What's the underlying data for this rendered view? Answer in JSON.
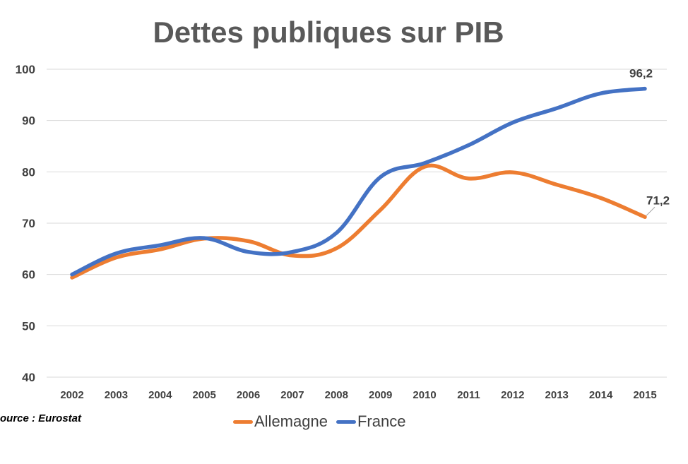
{
  "chart_data": {
    "type": "line",
    "title": "Dettes publiques sur PIB",
    "source": "ource : Eurostat",
    "x": [
      2002,
      2003,
      2004,
      2005,
      2006,
      2007,
      2008,
      2009,
      2010,
      2011,
      2012,
      2013,
      2014,
      2015
    ],
    "x_tick_labels": [
      "2002",
      "2003",
      "2004",
      "2005",
      "2006",
      "2007",
      "2008",
      "2009",
      "2010",
      "2011",
      "2012",
      "2013",
      "2014",
      "2015"
    ],
    "ylim": [
      40,
      100
    ],
    "y_ticks": [
      40,
      50,
      60,
      70,
      80,
      90,
      100
    ],
    "y_tick_labels": [
      "40",
      "50",
      "60",
      "70",
      "80",
      "90",
      "100"
    ],
    "grid": true,
    "legend_position": "bottom",
    "series": [
      {
        "name": "Allemagne",
        "color": "#ED7D31",
        "values": [
          59.4,
          63.3,
          64.9,
          67.0,
          66.5,
          63.7,
          65.1,
          72.6,
          81.0,
          78.7,
          79.9,
          77.5,
          74.9,
          71.2
        ],
        "end_label": "71,2"
      },
      {
        "name": "France",
        "color": "#4472C4",
        "values": [
          60.0,
          64.1,
          65.7,
          67.1,
          64.4,
          64.4,
          68.1,
          79.0,
          81.7,
          85.2,
          89.6,
          92.4,
          95.3,
          96.2
        ],
        "end_label": "96,2"
      }
    ]
  }
}
